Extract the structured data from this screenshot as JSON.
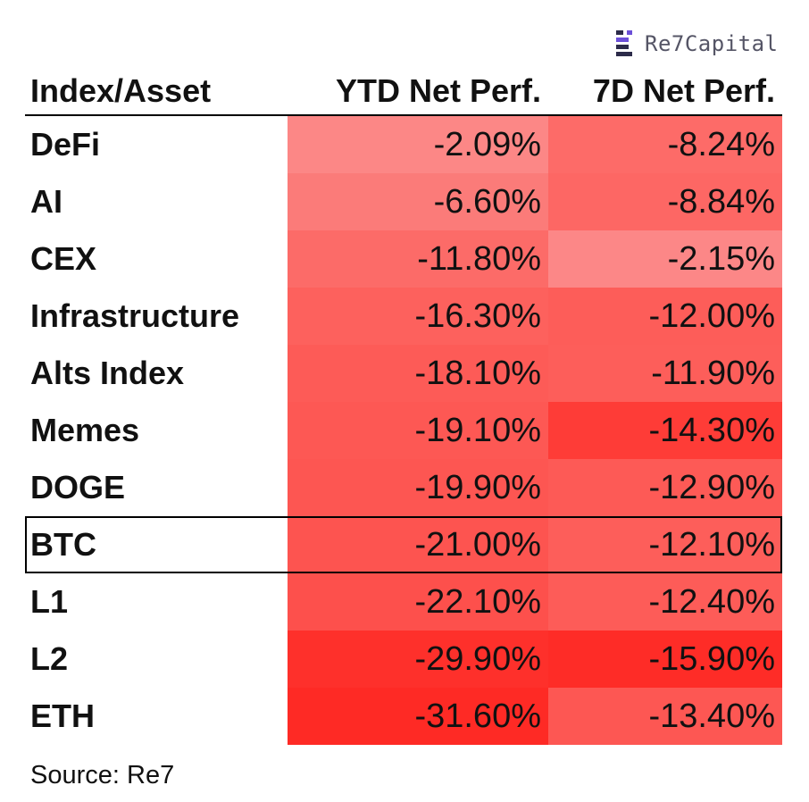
{
  "logo": {
    "text": "Re7Capital"
  },
  "chart_data": {
    "type": "table",
    "columns": [
      "Index/Asset",
      "YTD Net Perf.",
      "7D Net Perf."
    ],
    "rows": [
      {
        "name": "DeFi",
        "ytd": "-2.09%",
        "d7": "-8.24%",
        "ytd_color": "#fc8786",
        "d7_color": "#fd6b68"
      },
      {
        "name": "AI",
        "ytd": "-6.60%",
        "d7": "-8.84%",
        "ytd_color": "#fb7b79",
        "d7_color": "#fd6764"
      },
      {
        "name": "CEX",
        "ytd": "-11.80%",
        "d7": "-2.15%",
        "ytd_color": "#fc6b68",
        "d7_color": "#fc8787"
      },
      {
        "name": "Infrastructure",
        "ytd": "-16.30%",
        "d7": "-12.00%",
        "ytd_color": "#fd615d",
        "d7_color": "#fd5d59"
      },
      {
        "name": "Alts Index",
        "ytd": "-18.10%",
        "d7": "-11.90%",
        "ytd_color": "#fd5b57",
        "d7_color": "#fd5e5a"
      },
      {
        "name": "Memes",
        "ytd": "-19.10%",
        "d7": "-14.30%",
        "ytd_color": "#fd5854",
        "d7_color": "#fe3c37"
      },
      {
        "name": "DOGE",
        "ytd": "-19.90%",
        "d7": "-12.90%",
        "ytd_color": "#fd5652",
        "d7_color": "#fd5a56"
      },
      {
        "name": "BTC",
        "ytd": "-21.00%",
        "d7": "-12.10%",
        "ytd_color": "#fd5450",
        "d7_color": "#fd5e5a",
        "highlight": true
      },
      {
        "name": "L1",
        "ytd": "-22.10%",
        "d7": "-12.40%",
        "ytd_color": "#fd504c",
        "d7_color": "#fd5c58"
      },
      {
        "name": "L2",
        "ytd": "-29.90%",
        "d7": "-15.90%",
        "ytd_color": "#fe302b",
        "d7_color": "#fe2c27"
      },
      {
        "name": "ETH",
        "ytd": "-31.60%",
        "d7": "-13.40%",
        "ytd_color": "#fe2a25",
        "d7_color": "#fd5753"
      }
    ]
  },
  "source": "Source: Re7"
}
